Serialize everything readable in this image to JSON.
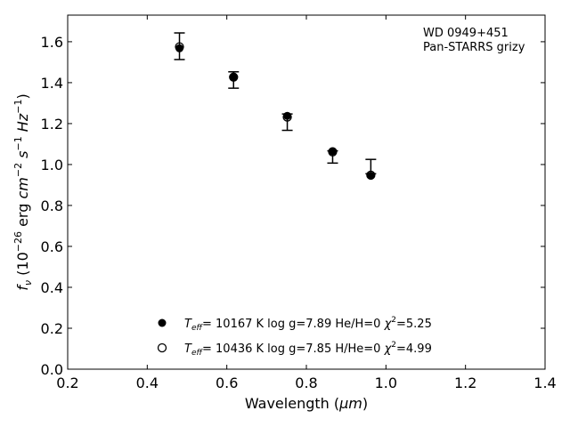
{
  "chart_data": {
    "type": "scatter",
    "xlabel_main": "Wavelength (",
    "xlabel_unit": "μm",
    "xlabel_end": ")",
    "ylabel_pre": "f",
    "ylabel_sub": "ν",
    "ylabel_mid": " (10",
    "ylabel_exp": "−26",
    "ylabel_erg": " erg ",
    "ylabel_cm": "cm",
    "ylabel_cm_exp": "−2",
    "ylabel_s": " s",
    "ylabel_s_exp": "−1",
    "ylabel_hz": " Hz",
    "ylabel_hz_exp": "−1",
    "ylabel_close": ")",
    "xlim": [
      0.2,
      1.4
    ],
    "ylim": [
      0.0,
      1.73
    ],
    "xticks": [
      0.2,
      0.4,
      0.6,
      0.8,
      1.0,
      1.2,
      1.4
    ],
    "xtick_labels": [
      "0.2",
      "0.4",
      "0.6",
      "0.8",
      "1.0",
      "1.2",
      "1.4"
    ],
    "yticks": [
      0.0,
      0.2,
      0.4,
      0.6,
      0.8,
      1.0,
      1.2,
      1.4,
      1.6
    ],
    "ytick_labels": [
      "0.0",
      "0.2",
      "0.4",
      "0.6",
      "0.8",
      "1.0",
      "1.2",
      "1.4",
      "1.6"
    ],
    "annotation_line1": "WD 0949+451",
    "annotation_line2": "Pan-STARRS grizy",
    "annotation_position": "top-right",
    "legend_position": "bottom-center",
    "observed": {
      "x": [
        0.481,
        0.617,
        0.752,
        0.866,
        0.962
      ],
      "y": [
        1.578,
        1.413,
        1.207,
        1.037,
        0.99
      ],
      "yerr": [
        0.065,
        0.04,
        0.04,
        0.03,
        0.035
      ]
    },
    "series": [
      {
        "marker": "filled",
        "x": [
          0.481,
          0.617,
          0.752,
          0.866,
          0.962
        ],
        "y": [
          1.568,
          1.428,
          1.238,
          1.065,
          0.945
        ],
        "legend": {
          "t_sym": "T",
          "t_sub": "eff",
          "rest": "= 10167 K  log g=7.89  He/H=0  ",
          "chi": "χ",
          "chi_exp": "2",
          "chi_val": "=5.25"
        }
      },
      {
        "marker": "open",
        "x": [
          0.481,
          0.617,
          0.752,
          0.866,
          0.962
        ],
        "y": [
          1.575,
          1.427,
          1.232,
          1.062,
          0.948
        ],
        "legend": {
          "t_sym": "T",
          "t_sub": "eff",
          "rest": "= 10436 K  log g=7.85  H/He=0  ",
          "chi": "χ",
          "chi_exp": "2",
          "chi_val": "=4.99"
        }
      }
    ],
    "colors": {
      "axis": "#000000",
      "marker": "#000000",
      "background": "#ffffff"
    }
  }
}
